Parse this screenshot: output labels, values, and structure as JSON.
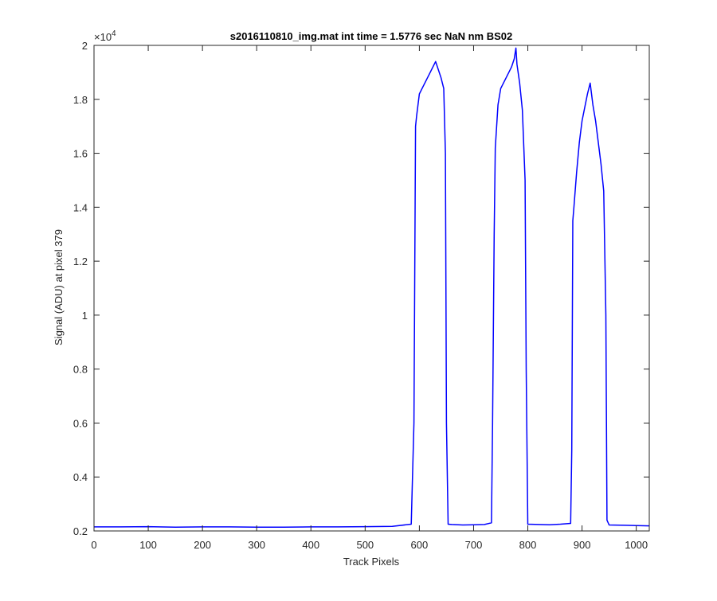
{
  "chart_data": {
    "type": "line",
    "title": "s2016110810_img.mat int time = 1.5776 sec  NaN nm BS02",
    "xlabel": "Track Pixels",
    "ylabel": "Signal (ADU) at pixel 379",
    "xlim": [
      0,
      1024
    ],
    "ylim": [
      0.2,
      2.0
    ],
    "y_exponent_label": "×10",
    "y_exponent_power": "4",
    "x_ticks": [
      0,
      100,
      200,
      300,
      400,
      500,
      600,
      700,
      800,
      900,
      1000
    ],
    "x_tick_labels": [
      "0",
      "100",
      "200",
      "300",
      "400",
      "500",
      "600",
      "700",
      "800",
      "900",
      "1000"
    ],
    "y_ticks": [
      0.2,
      0.4,
      0.6,
      0.8,
      1.0,
      1.2,
      1.4,
      1.6,
      1.8,
      2.0
    ],
    "y_tick_labels": [
      "0.2",
      "0.4",
      "0.6",
      "0.8",
      "1",
      "1.2",
      "1.4",
      "1.6",
      "1.8",
      "2"
    ],
    "grid": false,
    "series": [
      {
        "color": "#0000ff",
        "x": [
          0,
          50,
          100,
          150,
          200,
          250,
          300,
          350,
          400,
          450,
          500,
          550,
          585,
          590,
          593,
          595,
          600,
          605,
          610,
          615,
          620,
          625,
          630,
          635,
          640,
          645,
          648,
          650,
          653,
          660,
          680,
          700,
          720,
          733,
          735,
          738,
          740,
          745,
          750,
          755,
          760,
          765,
          770,
          775,
          778,
          780,
          785,
          790,
          795,
          797,
          800,
          820,
          840,
          860,
          879,
          881,
          883,
          885,
          890,
          895,
          900,
          905,
          910,
          915,
          920,
          925,
          930,
          935,
          940,
          944,
          946,
          950,
          980,
          1000,
          1024
        ],
        "y": [
          0.215,
          0.215,
          0.216,
          0.214,
          0.215,
          0.215,
          0.214,
          0.214,
          0.215,
          0.215,
          0.216,
          0.217,
          0.225,
          0.6,
          1.7,
          1.74,
          1.82,
          1.84,
          1.86,
          1.88,
          1.9,
          1.92,
          1.94,
          1.91,
          1.88,
          1.84,
          1.6,
          0.6,
          0.225,
          0.224,
          0.222,
          0.223,
          0.224,
          0.23,
          0.6,
          1.3,
          1.62,
          1.78,
          1.84,
          1.86,
          1.88,
          1.9,
          1.92,
          1.95,
          1.99,
          1.93,
          1.86,
          1.76,
          1.5,
          0.8,
          0.225,
          0.224,
          0.223,
          0.225,
          0.228,
          0.5,
          1.35,
          1.4,
          1.53,
          1.64,
          1.72,
          1.77,
          1.82,
          1.86,
          1.78,
          1.72,
          1.64,
          1.56,
          1.46,
          1.0,
          0.24,
          0.222,
          0.221,
          0.22,
          0.219
        ]
      }
    ]
  }
}
